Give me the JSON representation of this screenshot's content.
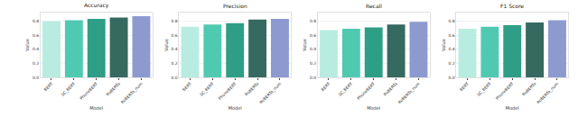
{
  "chart_data": [
    {
      "type": "bar",
      "title": "Accuracy",
      "x_label": "Model",
      "y_label": "Value",
      "categories": [
        "BERT",
        "SC_BERT",
        "PhoneBERT",
        "RoBERTa",
        "RoBERTa_num"
      ],
      "values": [
        0.8,
        0.81,
        0.83,
        0.85,
        0.87
      ],
      "colors": [
        "#b8ece0",
        "#4fcab1",
        "#2e9e86",
        "#36695f",
        "#8c9ad0"
      ],
      "ylim": [
        0,
        0.92
      ],
      "yticks": [
        {
          "value": 0,
          "label": "0.0"
        },
        0.2,
        0.4,
        0.6,
        0.8
      ],
      "grid": true
    },
    {
      "type": "bar",
      "title": "Precision",
      "x_label": "Model",
      "y_label": "Value",
      "categories": [
        "BERT",
        "SC_BERT",
        "PhoneBERT",
        "RoBERTa",
        "RoBERTa_num"
      ],
      "values": [
        0.72,
        0.75,
        0.77,
        0.82,
        0.83
      ],
      "colors": [
        "#b8ece0",
        "#4fcab1",
        "#2e9e86",
        "#36695f",
        "#8c9ad0"
      ],
      "ylim": [
        0,
        0.92
      ],
      "yticks": [
        {
          "value": 0,
          "label": "0.0"
        },
        0.2,
        0.4,
        0.6,
        0.8
      ],
      "grid": true
    },
    {
      "type": "bar",
      "title": "Recall",
      "x_label": "Model",
      "y_label": "Value",
      "categories": [
        "BERT",
        "SC_BERT",
        "PhoneBERT",
        "RoBERTa",
        "RoBERTa_num"
      ],
      "values": [
        0.67,
        0.69,
        0.71,
        0.75,
        0.79
      ],
      "colors": [
        "#b8ece0",
        "#4fcab1",
        "#2e9e86",
        "#36695f",
        "#8c9ad0"
      ],
      "ylim": [
        0,
        0.92
      ],
      "yticks": [
        {
          "value": 0,
          "label": "0.0"
        },
        0.2,
        0.4,
        0.6,
        0.8
      ],
      "grid": true
    },
    {
      "type": "bar",
      "title": "F1 Score",
      "x_label": "Model",
      "y_label": "Value",
      "categories": [
        "BERT",
        "SC_BERT",
        "PhoneBERT",
        "RoBERTa",
        "RoBERTa_num"
      ],
      "values": [
        0.69,
        0.72,
        0.74,
        0.78,
        0.81
      ],
      "colors": [
        "#b8ece0",
        "#4fcab1",
        "#2e9e86",
        "#36695f",
        "#8c9ad0"
      ],
      "ylim": [
        0,
        0.92
      ],
      "yticks": [
        {
          "value": 0,
          "label": "0.0"
        },
        0.2,
        0.4,
        0.6,
        0.8
      ],
      "grid": true
    }
  ]
}
